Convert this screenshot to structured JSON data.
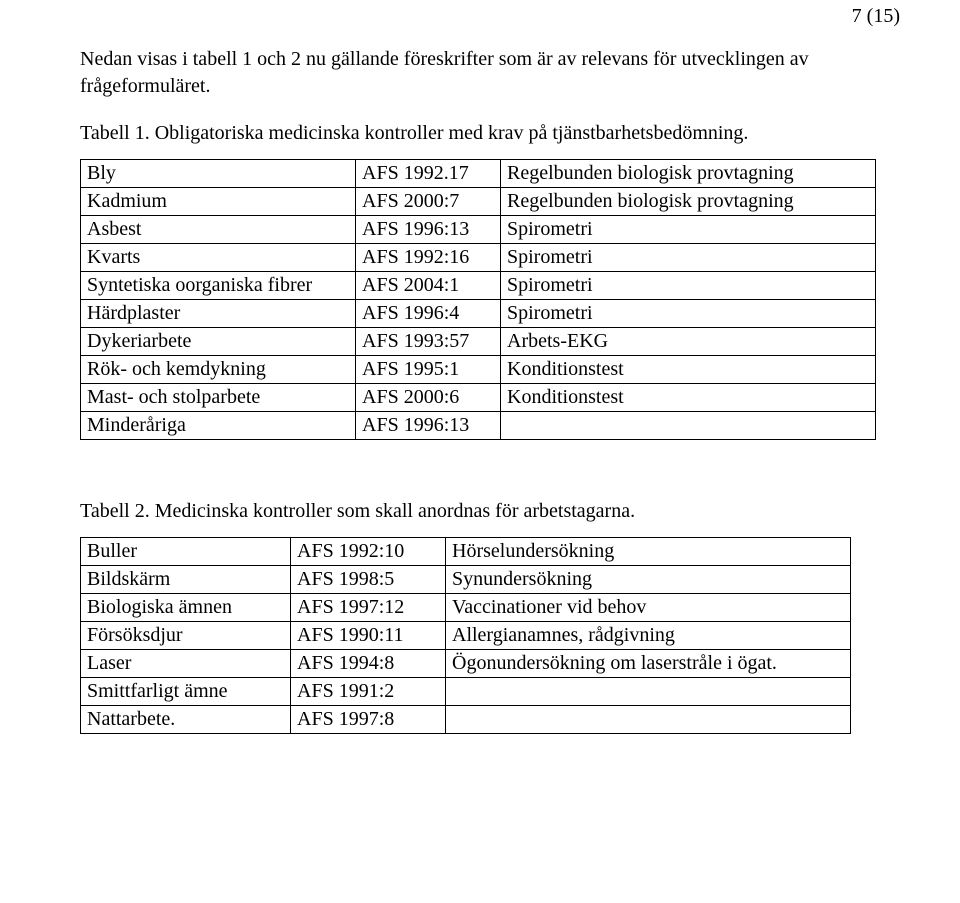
{
  "pageNumber": "7 (15)",
  "intro": "Nedan visas i tabell 1 och 2 nu gällande föreskrifter som är av relevans för utvecklingen av frågeformuläret.",
  "table1": {
    "caption": "Tabell 1. Obligatoriska medicinska kontroller med krav på tjänstbarhetsbedömning.",
    "rows": [
      {
        "c0": "Bly",
        "c1": "AFS 1992.17",
        "c2": "Regelbunden biologisk provtagning"
      },
      {
        "c0": "Kadmium",
        "c1": "AFS 2000:7",
        "c2": "Regelbunden biologisk provtagning"
      },
      {
        "c0": "Asbest",
        "c1": "AFS 1996:13",
        "c2": "Spirometri"
      },
      {
        "c0": "Kvarts",
        "c1": "AFS 1992:16",
        "c2": "Spirometri"
      },
      {
        "c0": "Syntetiska oorganiska fibrer",
        "c1": "AFS 2004:1",
        "c2": "Spirometri"
      },
      {
        "c0": "Härdplaster",
        "c1": "AFS 1996:4",
        "c2": "Spirometri"
      },
      {
        "c0": "Dykeriarbete",
        "c1": "AFS 1993:57",
        "c2": "Arbets-EKG"
      },
      {
        "c0": "Rök- och kemdykning",
        "c1": "AFS 1995:1",
        "c2": "Konditionstest"
      },
      {
        "c0": "Mast- och stolparbete",
        "c1": "AFS 2000:6",
        "c2": "Konditionstest"
      },
      {
        "c0": "Minderåriga",
        "c1": "AFS 1996:13",
        "c2": ""
      }
    ]
  },
  "table2": {
    "caption": "Tabell 2. Medicinska kontroller som skall anordnas för arbetstagarna.",
    "rows": [
      {
        "c0": "Buller",
        "c1": "AFS 1992:10",
        "c2": "Hörselundersökning"
      },
      {
        "c0": "Bildskärm",
        "c1": "AFS 1998:5",
        "c2": "Synundersökning"
      },
      {
        "c0": "Biologiska ämnen",
        "c1": "AFS 1997:12",
        "c2": "Vaccinationer vid behov"
      },
      {
        "c0": "Försöksdjur",
        "c1": "AFS 1990:11",
        "c2": "Allergianamnes, rådgivning"
      },
      {
        "c0": "Laser",
        "c1": "AFS 1994:8",
        "c2": "Ögonundersökning om laserstråle i ögat."
      },
      {
        "c0": "Smittfarligt ämne",
        "c1": "AFS 1991:2",
        "c2": ""
      },
      {
        "c0": "Nattarbete.",
        "c1": "AFS 1997:8",
        "c2": ""
      }
    ]
  }
}
